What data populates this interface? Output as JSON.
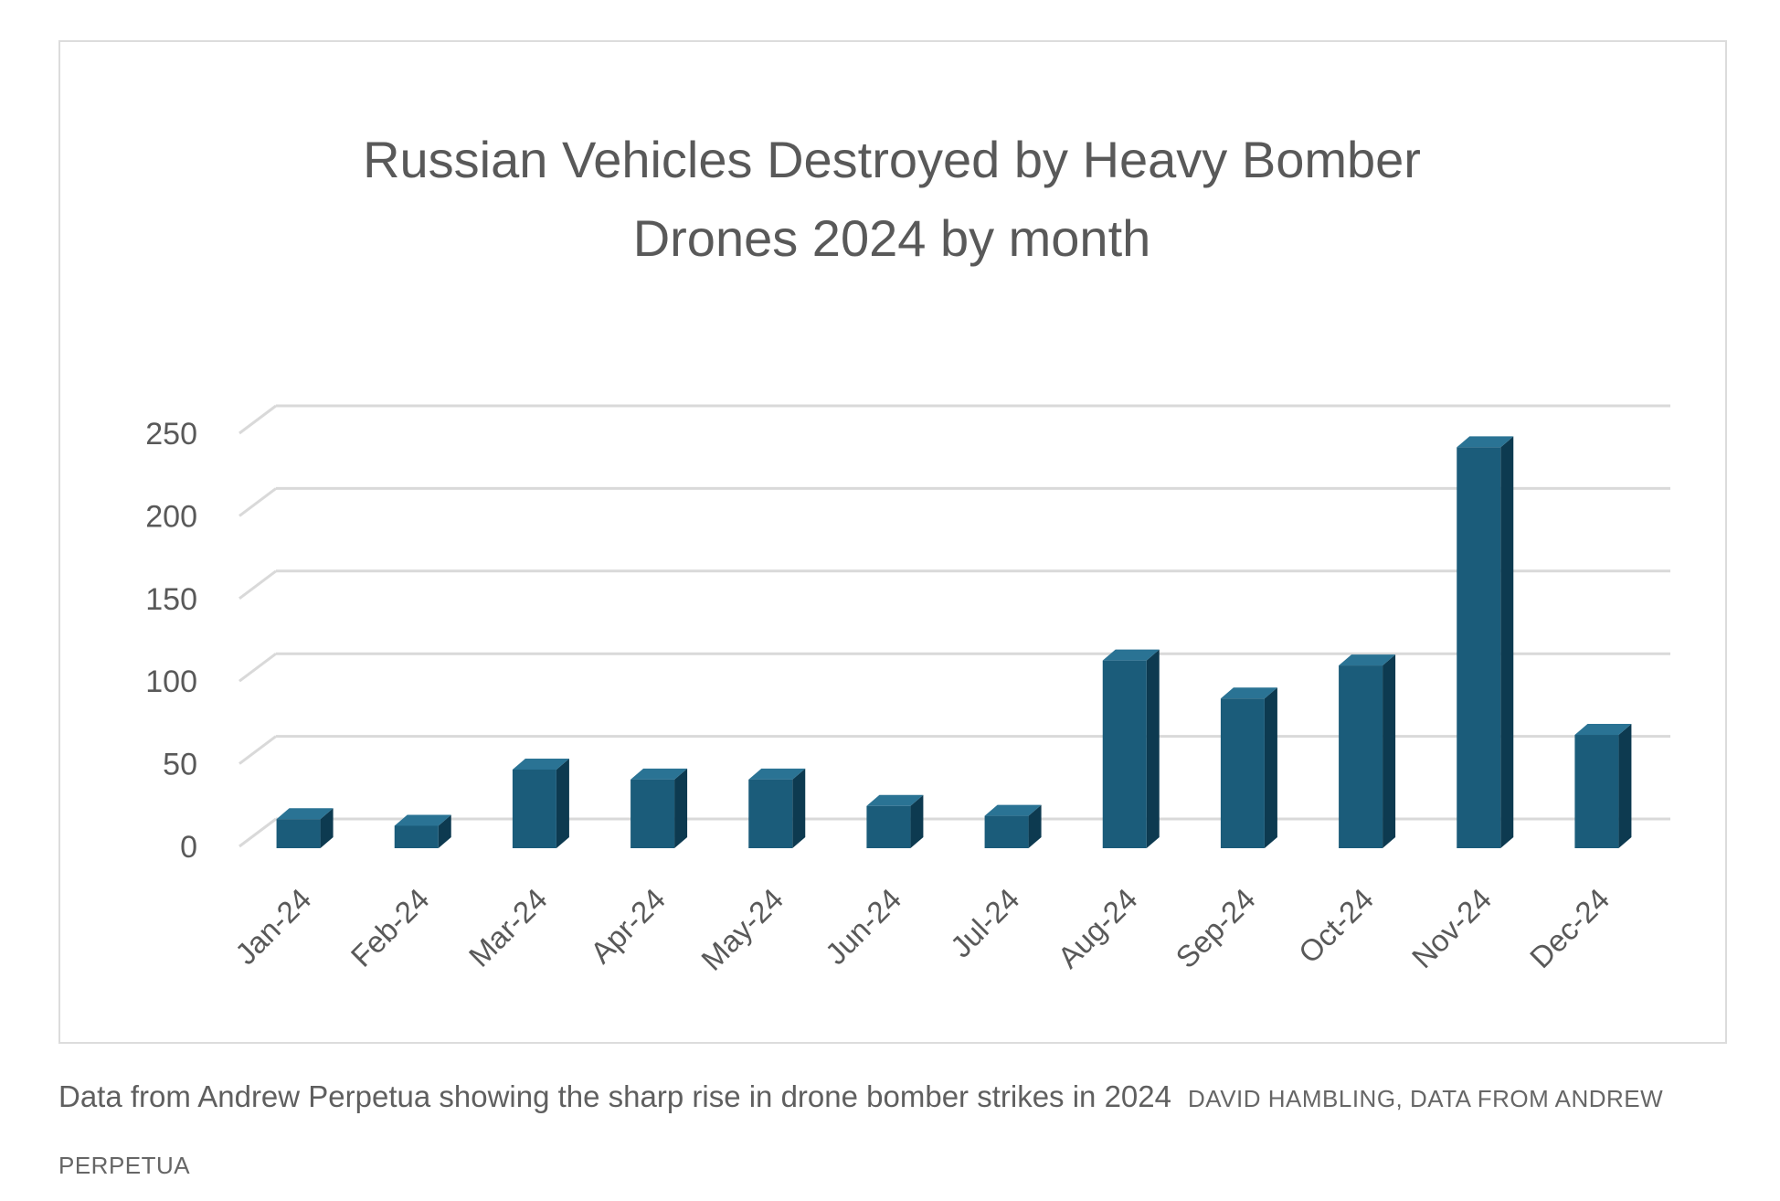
{
  "chart_data": {
    "type": "bar",
    "title": "Russian Vehicles Destroyed by Heavy Bomber Drones 2024 by month",
    "title_lines": [
      "Russian Vehicles Destroyed by Heavy Bomber",
      "Drones 2024 by month"
    ],
    "categories": [
      "Jan-24",
      "Feb-24",
      "Mar-24",
      "Apr-24",
      "May-24",
      "Jun-24",
      "Jul-24",
      "Aug-24",
      "Sep-24",
      "Oct-24",
      "Nov-24",
      "Dec-24"
    ],
    "values": [
      22,
      18,
      52,
      46,
      46,
      30,
      24,
      118,
      95,
      115,
      247,
      73
    ],
    "ylim": [
      0,
      250
    ],
    "yticks": [
      0,
      50,
      100,
      150,
      200,
      250
    ],
    "grid": true,
    "style": "3d-column",
    "colors": {
      "front": "#1b5c7a",
      "side": "#0d3a50",
      "top": "#2a7394"
    }
  },
  "caption": {
    "text": "Data from Andrew Perpetua showing the sharp rise in drone bomber strikes in 2024",
    "credit": "DAVID HAMBLING, DATA FROM ANDREW PERPETUA"
  }
}
